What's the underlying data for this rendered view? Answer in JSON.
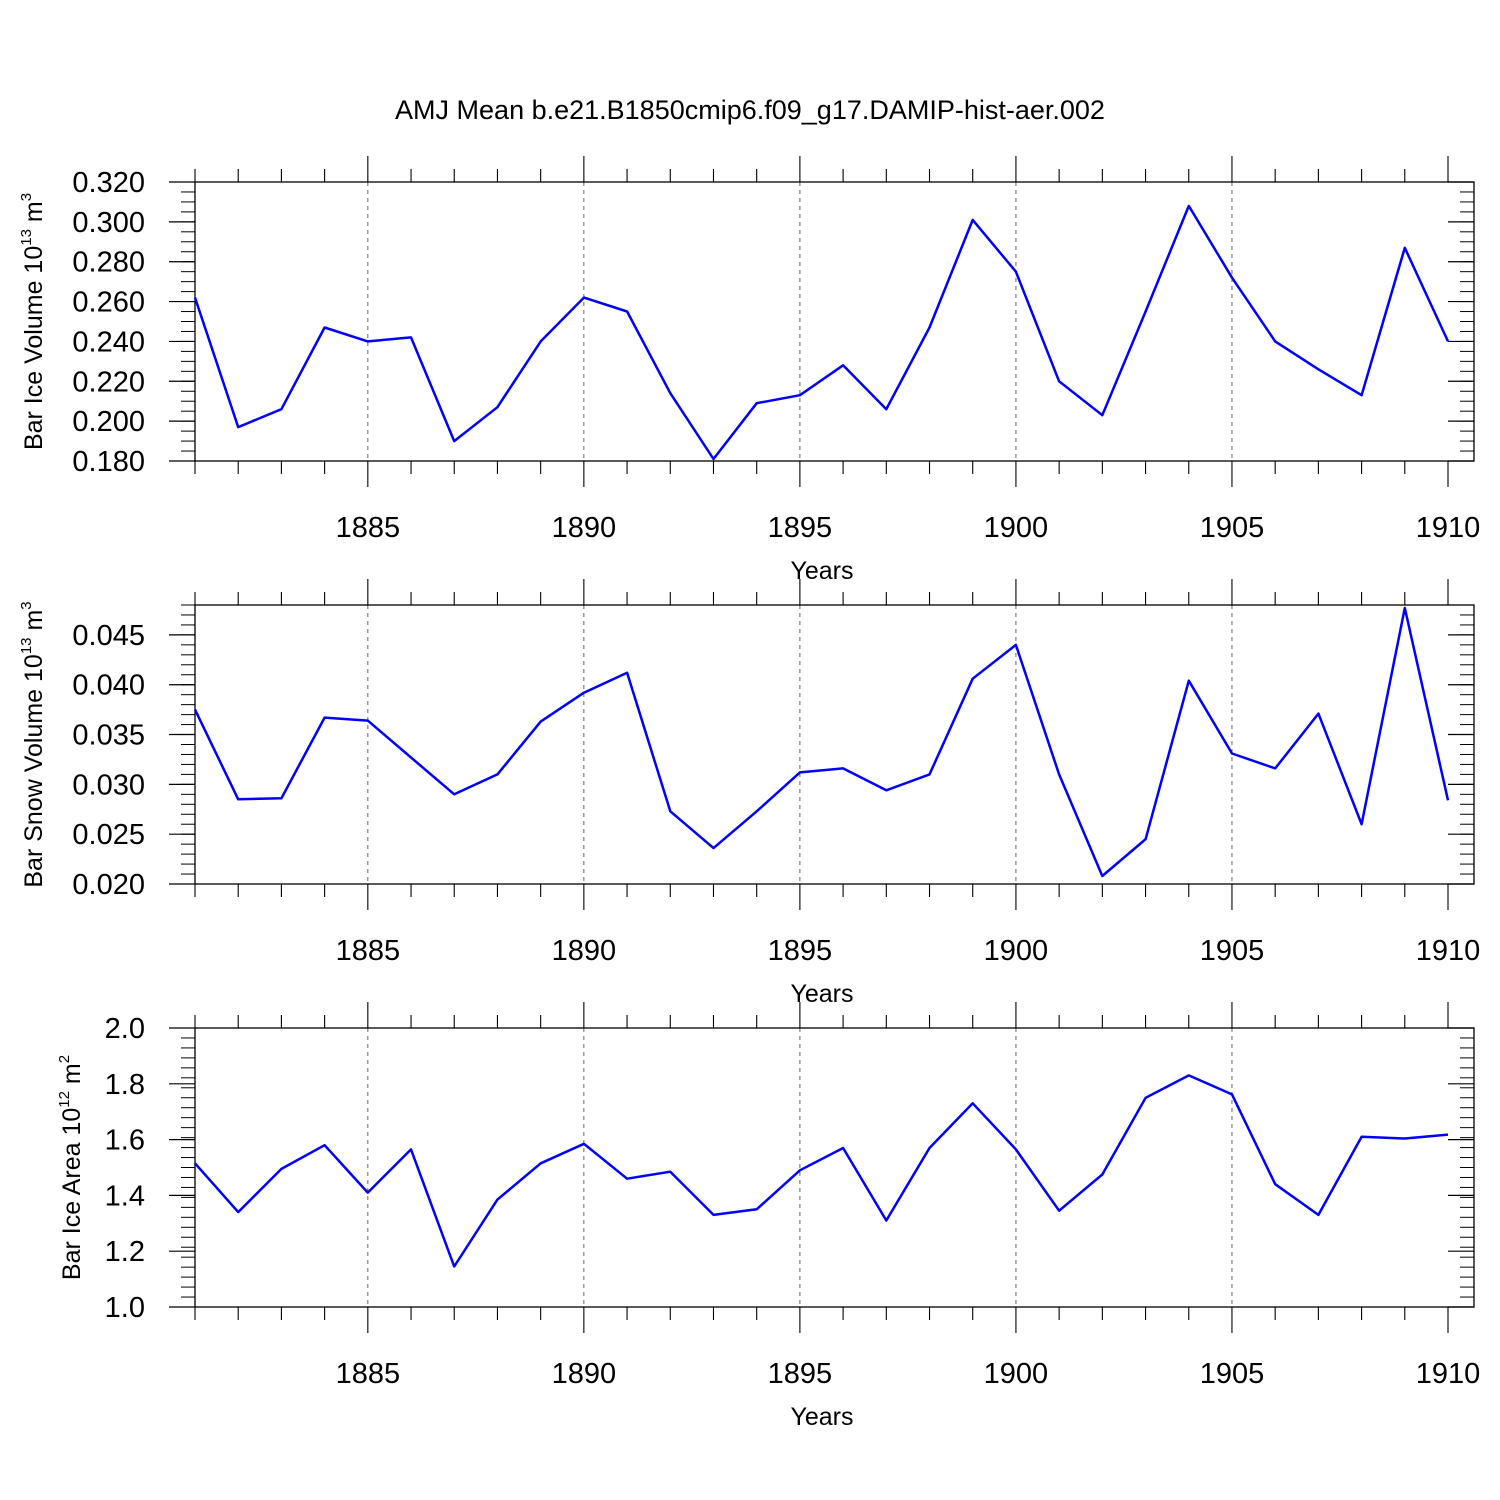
{
  "chart_data": {
    "title": "AMJ Mean b.e21.B1850cmip6.f09_g17.DAMIP-hist-aer.002",
    "line_color": "#0000ff",
    "panels": [
      {
        "type": "line",
        "ylabel": {
          "prefix": "Bar Ice Volume 10",
          "exp": "13",
          "unit": " m",
          "unit_exp": "3"
        },
        "xlabel": "Years",
        "xlim": [
          1881,
          1910
        ],
        "ylim": [
          0.18,
          0.32
        ],
        "yticks": [
          "0.320",
          "0.300",
          "0.280",
          "0.260",
          "0.240",
          "0.220",
          "0.200",
          "0.180"
        ],
        "ytick_values": [
          0.32,
          0.3,
          0.28,
          0.26,
          0.24,
          0.22,
          0.2,
          0.18
        ],
        "xticks": [
          "1885",
          "1890",
          "1895",
          "1900",
          "1905",
          "1910"
        ],
        "xtick_values": [
          1885,
          1890,
          1895,
          1900,
          1905,
          1910
        ],
        "x": [
          1881,
          1882,
          1883,
          1884,
          1885,
          1886,
          1887,
          1888,
          1889,
          1890,
          1891,
          1892,
          1893,
          1894,
          1895,
          1896,
          1897,
          1898,
          1899,
          1900,
          1901,
          1902,
          1903,
          1904,
          1905,
          1906,
          1907,
          1908,
          1909,
          1910
        ],
        "values": [
          0.262,
          0.197,
          0.206,
          0.247,
          0.24,
          0.242,
          0.19,
          0.207,
          0.24,
          0.262,
          0.255,
          0.214,
          0.181,
          0.209,
          0.213,
          0.228,
          0.206,
          0.247,
          0.301,
          0.275,
          0.22,
          0.203,
          0.255,
          0.308,
          0.272,
          0.24,
          0.226,
          0.213,
          0.287,
          0.24
        ]
      },
      {
        "type": "line",
        "ylabel": {
          "prefix": "Bar Snow Volume 10",
          "exp": "13",
          "unit": " m",
          "unit_exp": "3"
        },
        "xlabel": "Years",
        "xlim": [
          1881,
          1910
        ],
        "ylim": [
          0.02,
          0.048
        ],
        "yticks": [
          "0.045",
          "0.040",
          "0.035",
          "0.030",
          "0.025",
          "0.020"
        ],
        "ytick_values": [
          0.045,
          0.04,
          0.035,
          0.03,
          0.025,
          0.02
        ],
        "xticks": [
          "1885",
          "1890",
          "1895",
          "1900",
          "1905",
          "1910"
        ],
        "xtick_values": [
          1885,
          1890,
          1895,
          1900,
          1905,
          1910
        ],
        "x": [
          1881,
          1882,
          1883,
          1884,
          1885,
          1886,
          1887,
          1888,
          1889,
          1890,
          1891,
          1892,
          1893,
          1894,
          1895,
          1896,
          1897,
          1898,
          1899,
          1900,
          1901,
          1902,
          1903,
          1904,
          1905,
          1906,
          1907,
          1908,
          1909,
          1910
        ],
        "values": [
          0.0375,
          0.0285,
          0.0286,
          0.0367,
          0.0364,
          0.0327,
          0.029,
          0.031,
          0.0363,
          0.0392,
          0.0412,
          0.0273,
          0.0236,
          0.0273,
          0.0312,
          0.0316,
          0.0294,
          0.031,
          0.0406,
          0.044,
          0.031,
          0.0208,
          0.0245,
          0.0404,
          0.0331,
          0.0316,
          0.0371,
          0.026,
          0.0477,
          0.0284
        ]
      },
      {
        "type": "line",
        "ylabel": {
          "prefix": "Bar Ice Area 10",
          "exp": "12",
          "unit": " m",
          "unit_exp": "2"
        },
        "xlabel": "Years",
        "xlim": [
          1881,
          1910
        ],
        "ylim": [
          1.0,
          2.0
        ],
        "yticks": [
          "2.0",
          "1.8",
          "1.6",
          "1.4",
          "1.2",
          "1.0"
        ],
        "ytick_values": [
          2.0,
          1.8,
          1.6,
          1.4,
          1.2,
          1.0
        ],
        "xticks": [
          "1885",
          "1890",
          "1895",
          "1900",
          "1905",
          "1910"
        ],
        "xtick_values": [
          1885,
          1890,
          1895,
          1900,
          1905,
          1910
        ],
        "x": [
          1881,
          1882,
          1883,
          1884,
          1885,
          1886,
          1887,
          1888,
          1889,
          1890,
          1891,
          1892,
          1893,
          1894,
          1895,
          1896,
          1897,
          1898,
          1899,
          1900,
          1901,
          1902,
          1903,
          1904,
          1905,
          1906,
          1907,
          1908,
          1909,
          1910
        ],
        "values": [
          1.515,
          1.34,
          1.495,
          1.58,
          1.41,
          1.565,
          1.145,
          1.385,
          1.515,
          1.585,
          1.46,
          1.485,
          1.33,
          1.35,
          1.49,
          1.57,
          1.31,
          1.57,
          1.73,
          1.565,
          1.345,
          1.475,
          1.75,
          1.83,
          1.762,
          1.44,
          1.33,
          1.61,
          1.604,
          1.618
        ]
      }
    ]
  }
}
